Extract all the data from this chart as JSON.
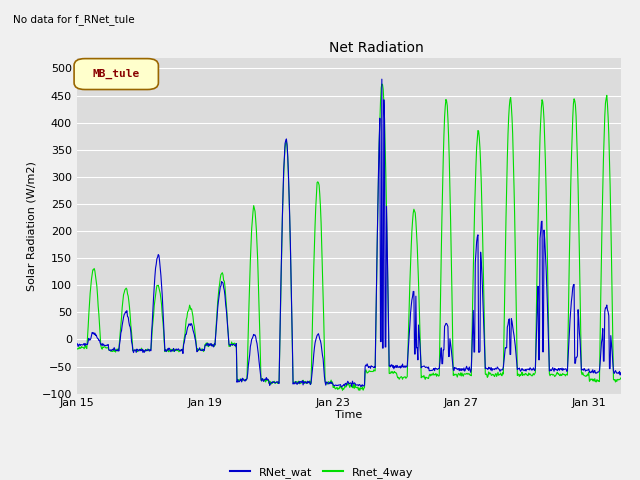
{
  "title": "Net Radiation",
  "ylabel": "Solar Radiation (W/m2)",
  "xlabel": "Time",
  "top_left_text": "No data for f_RNet_tule",
  "legend_box_text": "MB_tule",
  "xlim_days": [
    15,
    32
  ],
  "ylim": [
    -100,
    520
  ],
  "yticks": [
    -100,
    -50,
    0,
    50,
    100,
    150,
    200,
    250,
    300,
    350,
    400,
    450,
    500
  ],
  "xtick_labels": [
    "Jan 15",
    "Jan 19",
    "Jan 23",
    "Jan 27",
    "Jan 31"
  ],
  "xtick_positions": [
    15,
    19,
    23,
    27,
    31
  ],
  "color_blue": "#0000cc",
  "color_green": "#00dd00",
  "bg_color": "#dcdcdc",
  "fig_bg_color": "#f0f0f0",
  "legend_label_blue": "RNet_wat",
  "legend_label_green": "Rnet_4way"
}
